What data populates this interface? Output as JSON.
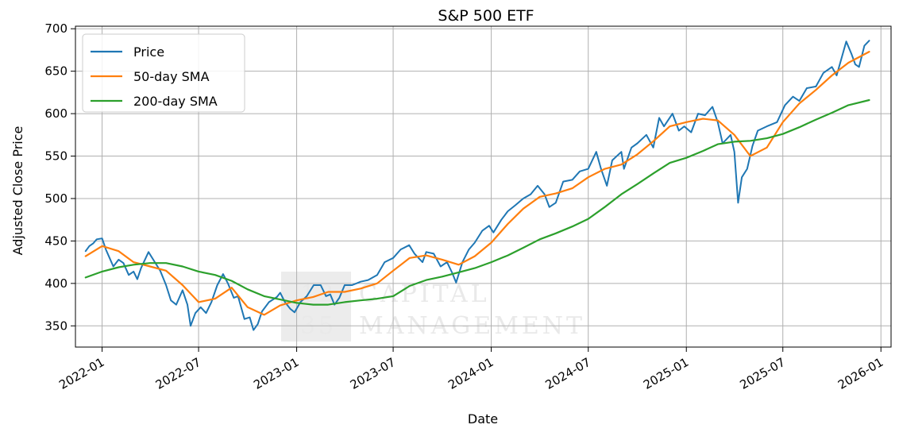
{
  "chart_data": {
    "type": "line",
    "title": "S&P 500 ETF",
    "xlabel": "Date",
    "ylabel": "Adjusted Close Price",
    "x_range": [
      "2021-11-12",
      "2026-01-20"
    ],
    "ylim": [
      325,
      703
    ],
    "grid": true,
    "legend_position": "top-left",
    "x_ticks": [
      "2022-01",
      "2022-07",
      "2023-01",
      "2023-07",
      "2024-01",
      "2024-07",
      "2025-01",
      "2025-07",
      "2026-01"
    ],
    "y_ticks": [
      350,
      400,
      450,
      500,
      550,
      600,
      650,
      700
    ],
    "colors": {
      "price": "#1f77b4",
      "sma50": "#ff7f0e",
      "sma200": "#2ca02c"
    },
    "series": [
      {
        "name": "Price",
        "color": "#1f77b4",
        "points": [
          [
            "2021-12-01",
            438
          ],
          [
            "2021-12-08",
            444
          ],
          [
            "2021-12-15",
            447
          ],
          [
            "2021-12-22",
            452
          ],
          [
            "2022-01-01",
            453
          ],
          [
            "2022-01-08",
            440
          ],
          [
            "2022-01-15",
            430
          ],
          [
            "2022-01-22",
            420
          ],
          [
            "2022-02-01",
            428
          ],
          [
            "2022-02-10",
            424
          ],
          [
            "2022-02-20",
            410
          ],
          [
            "2022-03-01",
            414
          ],
          [
            "2022-03-08",
            405
          ],
          [
            "2022-03-15",
            418
          ],
          [
            "2022-03-29",
            437
          ],
          [
            "2022-04-10",
            425
          ],
          [
            "2022-04-20",
            415
          ],
          [
            "2022-05-01",
            398
          ],
          [
            "2022-05-10",
            380
          ],
          [
            "2022-05-20",
            375
          ],
          [
            "2022-06-01",
            392
          ],
          [
            "2022-06-10",
            375
          ],
          [
            "2022-06-16",
            350
          ],
          [
            "2022-06-25",
            365
          ],
          [
            "2022-07-05",
            372
          ],
          [
            "2022-07-15",
            365
          ],
          [
            "2022-07-25",
            378
          ],
          [
            "2022-08-05",
            398
          ],
          [
            "2022-08-16",
            411
          ],
          [
            "2022-08-25",
            400
          ],
          [
            "2022-09-05",
            383
          ],
          [
            "2022-09-13",
            385
          ],
          [
            "2022-09-25",
            358
          ],
          [
            "2022-10-05",
            360
          ],
          [
            "2022-10-12",
            345
          ],
          [
            "2022-10-20",
            352
          ],
          [
            "2022-10-28",
            367
          ],
          [
            "2022-11-10",
            378
          ],
          [
            "2022-11-25",
            384
          ],
          [
            "2022-12-01",
            389
          ],
          [
            "2022-12-10",
            378
          ],
          [
            "2022-12-20",
            370
          ],
          [
            "2022-12-28",
            366
          ],
          [
            "2023-01-08",
            378
          ],
          [
            "2023-01-20",
            385
          ],
          [
            "2023-02-02",
            398
          ],
          [
            "2023-02-15",
            398
          ],
          [
            "2023-02-25",
            385
          ],
          [
            "2023-03-05",
            387
          ],
          [
            "2023-03-13",
            375
          ],
          [
            "2023-03-22",
            383
          ],
          [
            "2023-04-01",
            398
          ],
          [
            "2023-04-15",
            398
          ],
          [
            "2023-05-01",
            402
          ],
          [
            "2023-05-15",
            404
          ],
          [
            "2023-06-01",
            410
          ],
          [
            "2023-06-15",
            425
          ],
          [
            "2023-07-01",
            430
          ],
          [
            "2023-07-15",
            440
          ],
          [
            "2023-07-31",
            445
          ],
          [
            "2023-08-10",
            435
          ],
          [
            "2023-08-25",
            425
          ],
          [
            "2023-09-01",
            437
          ],
          [
            "2023-09-15",
            435
          ],
          [
            "2023-09-28",
            420
          ],
          [
            "2023-10-10",
            425
          ],
          [
            "2023-10-20",
            412
          ],
          [
            "2023-10-27",
            401
          ],
          [
            "2023-11-08",
            425
          ],
          [
            "2023-11-20",
            440
          ],
          [
            "2023-12-01",
            448
          ],
          [
            "2023-12-15",
            462
          ],
          [
            "2023-12-28",
            468
          ],
          [
            "2024-01-05",
            460
          ],
          [
            "2024-01-20",
            475
          ],
          [
            "2024-02-01",
            485
          ],
          [
            "2024-02-15",
            492
          ],
          [
            "2024-03-01",
            500
          ],
          [
            "2024-03-15",
            505
          ],
          [
            "2024-03-28",
            515
          ],
          [
            "2024-04-10",
            505
          ],
          [
            "2024-04-19",
            490
          ],
          [
            "2024-05-01",
            495
          ],
          [
            "2024-05-15",
            520
          ],
          [
            "2024-06-01",
            522
          ],
          [
            "2024-06-15",
            532
          ],
          [
            "2024-07-01",
            535
          ],
          [
            "2024-07-16",
            555
          ],
          [
            "2024-07-25",
            535
          ],
          [
            "2024-08-05",
            515
          ],
          [
            "2024-08-15",
            545
          ],
          [
            "2024-09-01",
            555
          ],
          [
            "2024-09-06",
            535
          ],
          [
            "2024-09-20",
            560
          ],
          [
            "2024-10-01",
            565
          ],
          [
            "2024-10-18",
            575
          ],
          [
            "2024-10-31",
            560
          ],
          [
            "2024-11-11",
            595
          ],
          [
            "2024-11-20",
            585
          ],
          [
            "2024-12-06",
            600
          ],
          [
            "2024-12-18",
            580
          ],
          [
            "2024-12-28",
            585
          ],
          [
            "2025-01-10",
            578
          ],
          [
            "2025-01-23",
            600
          ],
          [
            "2025-02-05",
            598
          ],
          [
            "2025-02-19",
            608
          ],
          [
            "2025-03-01",
            590
          ],
          [
            "2025-03-10",
            565
          ],
          [
            "2025-03-25",
            575
          ],
          [
            "2025-04-01",
            555
          ],
          [
            "2025-04-08",
            495
          ],
          [
            "2025-04-15",
            525
          ],
          [
            "2025-04-25",
            535
          ],
          [
            "2025-05-05",
            562
          ],
          [
            "2025-05-15",
            580
          ],
          [
            "2025-06-01",
            585
          ],
          [
            "2025-06-20",
            590
          ],
          [
            "2025-07-05",
            610
          ],
          [
            "2025-07-20",
            620
          ],
          [
            "2025-08-01",
            615
          ],
          [
            "2025-08-15",
            630
          ],
          [
            "2025-09-01",
            632
          ],
          [
            "2025-09-15",
            648
          ],
          [
            "2025-10-01",
            655
          ],
          [
            "2025-10-10",
            645
          ],
          [
            "2025-10-28",
            685
          ],
          [
            "2025-11-07",
            670
          ],
          [
            "2025-11-14",
            658
          ],
          [
            "2025-11-21",
            655
          ],
          [
            "2025-12-01",
            680
          ],
          [
            "2025-12-10",
            686
          ]
        ]
      },
      {
        "name": "50-day SMA",
        "color": "#ff7f0e",
        "points": [
          [
            "2021-12-01",
            432
          ],
          [
            "2022-01-01",
            444
          ],
          [
            "2022-02-01",
            438
          ],
          [
            "2022-03-01",
            425
          ],
          [
            "2022-04-01",
            420
          ],
          [
            "2022-05-01",
            415
          ],
          [
            "2022-06-01",
            398
          ],
          [
            "2022-07-01",
            378
          ],
          [
            "2022-08-01",
            382
          ],
          [
            "2022-09-01",
            395
          ],
          [
            "2022-10-01",
            372
          ],
          [
            "2022-11-01",
            363
          ],
          [
            "2022-12-01",
            374
          ],
          [
            "2023-01-01",
            380
          ],
          [
            "2023-02-01",
            384
          ],
          [
            "2023-03-01",
            390
          ],
          [
            "2023-04-01",
            390
          ],
          [
            "2023-05-01",
            394
          ],
          [
            "2023-06-01",
            400
          ],
          [
            "2023-07-01",
            415
          ],
          [
            "2023-08-01",
            430
          ],
          [
            "2023-09-01",
            433
          ],
          [
            "2023-10-01",
            428
          ],
          [
            "2023-11-01",
            422
          ],
          [
            "2023-12-01",
            432
          ],
          [
            "2024-01-01",
            448
          ],
          [
            "2024-02-01",
            470
          ],
          [
            "2024-03-01",
            488
          ],
          [
            "2024-04-01",
            502
          ],
          [
            "2024-05-01",
            506
          ],
          [
            "2024-06-01",
            512
          ],
          [
            "2024-07-01",
            525
          ],
          [
            "2024-08-01",
            535
          ],
          [
            "2024-09-01",
            540
          ],
          [
            "2024-10-01",
            552
          ],
          [
            "2024-11-01",
            568
          ],
          [
            "2024-12-01",
            585
          ],
          [
            "2025-01-01",
            590
          ],
          [
            "2025-02-01",
            594
          ],
          [
            "2025-03-01",
            592
          ],
          [
            "2025-04-01",
            575
          ],
          [
            "2025-05-01",
            550
          ],
          [
            "2025-06-01",
            560
          ],
          [
            "2025-07-01",
            590
          ],
          [
            "2025-08-01",
            612
          ],
          [
            "2025-09-01",
            628
          ],
          [
            "2025-10-01",
            645
          ],
          [
            "2025-11-01",
            660
          ],
          [
            "2025-12-10",
            673
          ]
        ]
      },
      {
        "name": "200-day SMA",
        "color": "#2ca02c",
        "points": [
          [
            "2021-12-01",
            407
          ],
          [
            "2022-01-01",
            414
          ],
          [
            "2022-02-01",
            419
          ],
          [
            "2022-03-01",
            422
          ],
          [
            "2022-04-01",
            424
          ],
          [
            "2022-05-01",
            424
          ],
          [
            "2022-06-01",
            420
          ],
          [
            "2022-07-01",
            414
          ],
          [
            "2022-08-01",
            410
          ],
          [
            "2022-09-01",
            403
          ],
          [
            "2022-10-01",
            393
          ],
          [
            "2022-11-01",
            385
          ],
          [
            "2022-12-01",
            381
          ],
          [
            "2023-01-01",
            377
          ],
          [
            "2023-02-01",
            375
          ],
          [
            "2023-03-01",
            375
          ],
          [
            "2023-04-01",
            378
          ],
          [
            "2023-05-01",
            380
          ],
          [
            "2023-06-01",
            382
          ],
          [
            "2023-07-01",
            385
          ],
          [
            "2023-08-01",
            397
          ],
          [
            "2023-09-01",
            404
          ],
          [
            "2023-10-01",
            408
          ],
          [
            "2023-11-01",
            413
          ],
          [
            "2023-12-01",
            418
          ],
          [
            "2024-01-01",
            425
          ],
          [
            "2024-02-01",
            433
          ],
          [
            "2024-03-01",
            442
          ],
          [
            "2024-04-01",
            452
          ],
          [
            "2024-05-01",
            459
          ],
          [
            "2024-06-01",
            467
          ],
          [
            "2024-07-01",
            476
          ],
          [
            "2024-08-01",
            490
          ],
          [
            "2024-09-01",
            505
          ],
          [
            "2024-10-01",
            517
          ],
          [
            "2024-11-01",
            530
          ],
          [
            "2024-12-01",
            542
          ],
          [
            "2025-01-01",
            548
          ],
          [
            "2025-02-01",
            556
          ],
          [
            "2025-03-01",
            564
          ],
          [
            "2025-04-01",
            567
          ],
          [
            "2025-05-01",
            568
          ],
          [
            "2025-06-01",
            571
          ],
          [
            "2025-07-01",
            576
          ],
          [
            "2025-08-01",
            584
          ],
          [
            "2025-09-01",
            593
          ],
          [
            "2025-10-01",
            601
          ],
          [
            "2025-11-01",
            610
          ],
          [
            "2025-12-10",
            616
          ]
        ]
      }
    ]
  }
}
